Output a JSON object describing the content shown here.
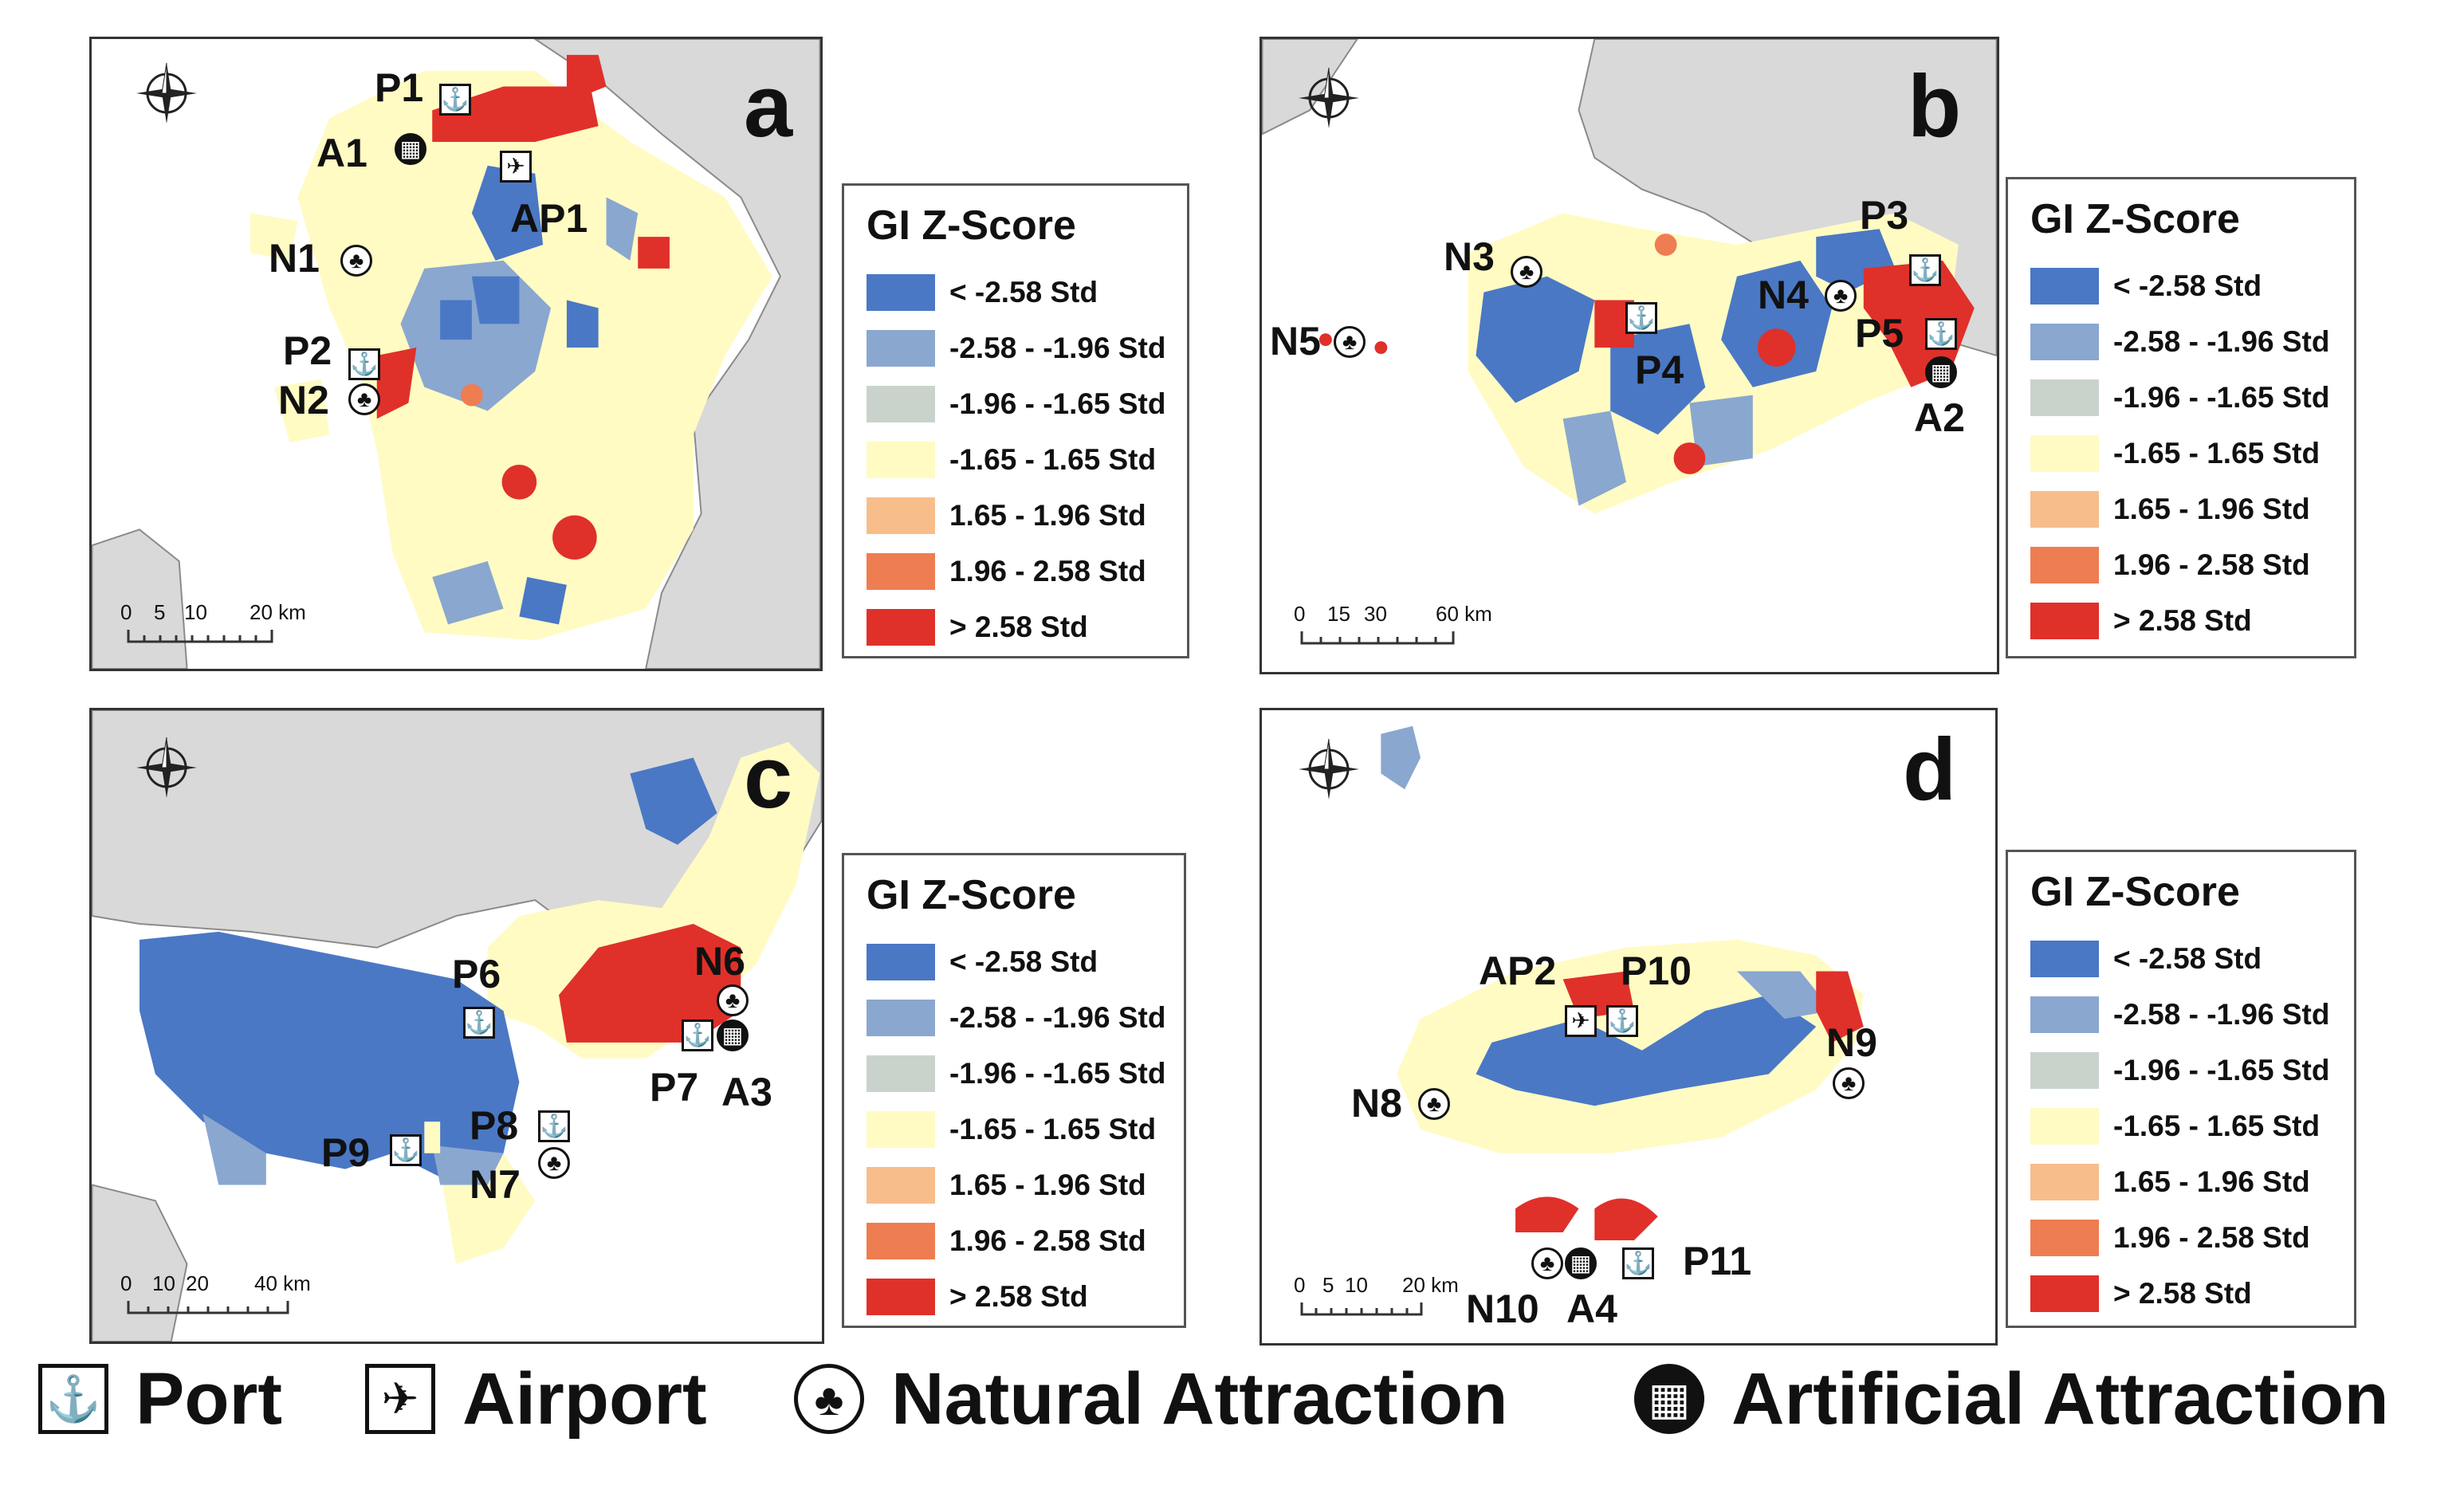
{
  "colors": {
    "land": "#d9d9d9",
    "border": "#8a8a8a",
    "lt_258": "#4a78c5",
    "m258_m196": "#8aa7cf",
    "m196_m165": "#c9d3cc",
    "m165_165": "#fffbc3",
    "p165_196": "#f7be8c",
    "p196_258": "#ef7d52",
    "gt_258": "#e0302a"
  },
  "legend": {
    "title": "GI Z-Score",
    "entries": [
      {
        "label": "< -2.58 Std",
        "color": "#4a78c5"
      },
      {
        "label": "-2.58 - -1.96 Std",
        "color": "#8aa7cf"
      },
      {
        "label": "-1.96 - -1.65 Std",
        "color": "#c9d3cc"
      },
      {
        "label": "-1.65 - 1.65 Std",
        "color": "#fffbc3"
      },
      {
        "label": "1.65 - 1.96 Std",
        "color": "#f7be8c"
      },
      {
        "label": "1.96 - 2.58 Std",
        "color": "#ef7d52"
      },
      {
        "label": "> 2.58 Std",
        "color": "#e0302a"
      }
    ]
  },
  "compass": {
    "n": "N",
    "s": "S",
    "e": "E",
    "w": "W"
  },
  "panels": {
    "a": {
      "letter": "a",
      "scale_ticks": [
        "0",
        "5",
        "10",
        "20 km"
      ],
      "pois": [
        {
          "id": "P1",
          "type": "port"
        },
        {
          "id": "A1",
          "type": "artificial"
        },
        {
          "id": "AP1",
          "type": "airport"
        },
        {
          "id": "N1",
          "type": "natural"
        },
        {
          "id": "P2",
          "type": "port"
        },
        {
          "id": "N2",
          "type": "natural"
        }
      ]
    },
    "b": {
      "letter": "b",
      "scale_ticks": [
        "0",
        "15",
        "30",
        "60 km"
      ],
      "pois": [
        {
          "id": "N3",
          "type": "natural"
        },
        {
          "id": "N5",
          "type": "natural"
        },
        {
          "id": "P4",
          "type": "port"
        },
        {
          "id": "N4",
          "type": "natural"
        },
        {
          "id": "P3",
          "type": "port"
        },
        {
          "id": "P5",
          "type": "port"
        },
        {
          "id": "A2",
          "type": "artificial"
        }
      ]
    },
    "c": {
      "letter": "c",
      "scale_ticks": [
        "0",
        "10",
        "20",
        "40 km"
      ],
      "pois": [
        {
          "id": "P6",
          "type": "port"
        },
        {
          "id": "N6",
          "type": "natural"
        },
        {
          "id": "P7",
          "type": "port"
        },
        {
          "id": "A3",
          "type": "artificial"
        },
        {
          "id": "P8",
          "type": "port"
        },
        {
          "id": "P9",
          "type": "port"
        },
        {
          "id": "N7",
          "type": "natural"
        }
      ]
    },
    "d": {
      "letter": "d",
      "scale_ticks": [
        "0",
        "5",
        "10",
        "20 km"
      ],
      "pois": [
        {
          "id": "AP2",
          "type": "airport"
        },
        {
          "id": "P10",
          "type": "port"
        },
        {
          "id": "N8",
          "type": "natural"
        },
        {
          "id": "N9",
          "type": "natural"
        },
        {
          "id": "N10",
          "type": "natural"
        },
        {
          "id": "A4",
          "type": "artificial"
        },
        {
          "id": "P11",
          "type": "port"
        }
      ]
    }
  },
  "key": [
    {
      "label": "Port",
      "icon": "anchor-icon"
    },
    {
      "label": "Airport",
      "icon": "airplane-icon"
    },
    {
      "label": "Natural Attraction",
      "icon": "tree-icon"
    },
    {
      "label": "Artificial Attraction",
      "icon": "building-icon"
    }
  ]
}
